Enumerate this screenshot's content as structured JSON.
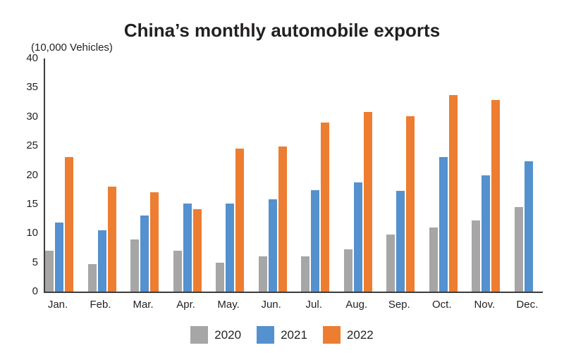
{
  "title": "China’s monthly automobile exports",
  "units_label": "(10,000 Vehicles)",
  "chart_data": {
    "type": "bar",
    "title": "China’s monthly automobile exports",
    "ylabel": "(10,000 Vehicles)",
    "categories": [
      "Jan.",
      "Feb.",
      "Mar.",
      "Apr.",
      "May.",
      "Jun.",
      "Jul.",
      "Aug.",
      "Sep.",
      "Oct.",
      "Nov.",
      "Dec."
    ],
    "series": [
      {
        "name": "2020",
        "color": "#a6a6a6",
        "values": [
          7.0,
          4.7,
          9.0,
          7.0,
          5.0,
          6.1,
          6.1,
          7.2,
          9.8,
          11.0,
          12.2,
          14.5
        ]
      },
      {
        "name": "2021",
        "color": "#5491ce",
        "values": [
          11.9,
          10.5,
          13.1,
          15.1,
          15.1,
          15.8,
          17.4,
          18.7,
          17.3,
          23.1,
          20.0,
          22.3
        ]
      },
      {
        "name": "2022",
        "color": "#ed7d31",
        "values": [
          23.1,
          18.0,
          17.0,
          14.1,
          24.5,
          24.9,
          29.0,
          30.8,
          30.1,
          33.7,
          32.9,
          null
        ]
      }
    ],
    "ylim": [
      0,
      40
    ],
    "yticks": [
      0,
      5,
      10,
      15,
      20,
      25,
      30,
      35,
      40
    ],
    "grid": false,
    "legend_position": "bottom",
    "axis_color": "#3c3c3c",
    "text_color": "#231f20"
  }
}
